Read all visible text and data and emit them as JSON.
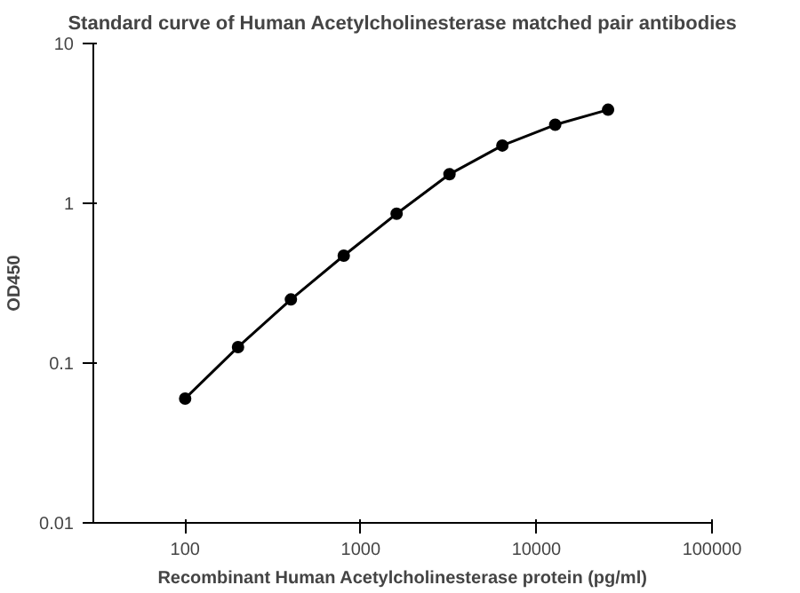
{
  "chart_data": {
    "type": "line",
    "title": "Standard curve of Human Acetylcholinesterase matched pair antibodies",
    "xlabel": "Recombinant Human Acetylcholinesterase protein (pg/ml)",
    "ylabel": "OD450",
    "x": [
      100,
      200,
      400,
      800,
      1600,
      3200,
      6400,
      12800,
      25600
    ],
    "series": [
      {
        "color": "#000000",
        "values": [
          0.06,
          0.126,
          0.25,
          0.47,
          0.86,
          1.52,
          2.3,
          3.1,
          3.85
        ]
      }
    ],
    "log": "xy",
    "xlim": [
      30,
      100000
    ],
    "ylim": [
      0.01,
      10
    ],
    "xticks": [
      100,
      1000,
      10000,
      100000
    ],
    "yticks": [
      0.01,
      0.1,
      1,
      10
    ],
    "grid": false,
    "marker": "circle",
    "line_style": "solid"
  }
}
